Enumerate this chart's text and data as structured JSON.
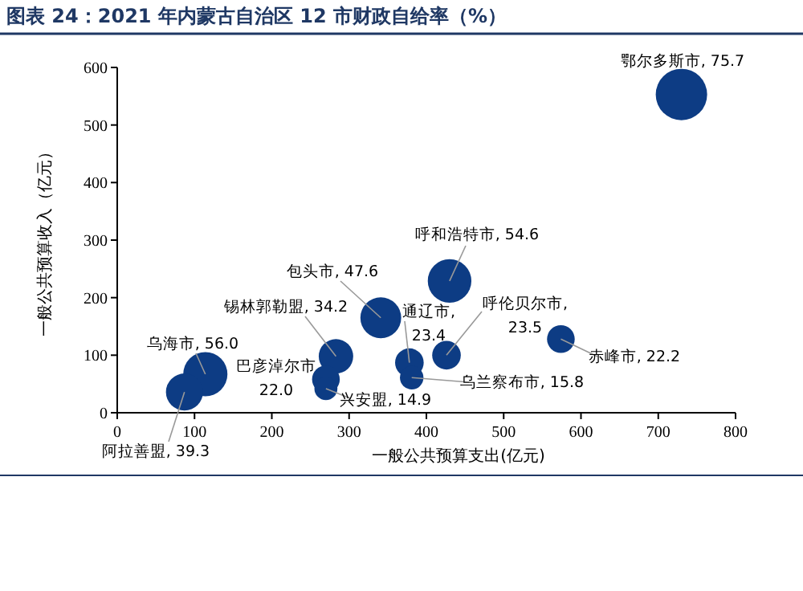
{
  "chart_data": {
    "type": "bubble",
    "title": "图表 24：2021 年内蒙古自治区 12 市财政自给率（%）",
    "xlabel": "一般公共预算支出(亿元)",
    "ylabel": "一般公共预算收入（亿元）",
    "xlim": [
      0,
      800
    ],
    "xticks": [
      0,
      100,
      200,
      300,
      400,
      500,
      600,
      700,
      800
    ],
    "ylim": [
      0,
      600
    ],
    "yticks": [
      0,
      100,
      200,
      300,
      400,
      500,
      600
    ],
    "grid": false,
    "series": [
      {
        "color": "#0d3c84",
        "x": [
          730,
          430,
          341,
          283,
          114,
          87,
          270,
          270,
          378,
          381,
          426,
          574
        ],
        "values": [
          553,
          229,
          165,
          98,
          67,
          36,
          58,
          42,
          87,
          61,
          100,
          128
        ],
        "sizes": [
          1,
          0.72,
          0.63,
          0.45,
          0.74,
          0.52,
          0.29,
          0.2,
          0.31,
          0.21,
          0.31,
          0.29
        ]
      }
    ],
    "annotations": [
      {
        "text": "鄂尔多斯市, 75.7",
        "x": 730,
        "y": 553
      },
      {
        "text": "呼和浩特市, 54.6",
        "x": 430,
        "y": 229
      },
      {
        "text": "包头市, 47.6",
        "x": 341,
        "y": 165
      },
      {
        "text": "锡林郭勒盟, 34.2",
        "x": 283,
        "y": 98
      },
      {
        "text": "乌海市, 56.0",
        "x": 114,
        "y": 67
      },
      {
        "text": "阿拉善盟, 39.3",
        "x": 87,
        "y": 36
      },
      {
        "text": "巴彦淖尔市\n22.0",
        "x": 270,
        "y": 58
      },
      {
        "text": "兴安盟, 14.9",
        "x": 270,
        "y": 42
      },
      {
        "text": "通辽市,\n23.4",
        "x": 378,
        "y": 87
      },
      {
        "text": "乌兰察布市, 15.8",
        "x": 381,
        "y": 61
      },
      {
        "text": "呼伦贝尔市,\n23.5",
        "x": 426,
        "y": 100
      },
      {
        "text": "赤峰市, 22.2",
        "x": 574,
        "y": 128
      }
    ]
  }
}
